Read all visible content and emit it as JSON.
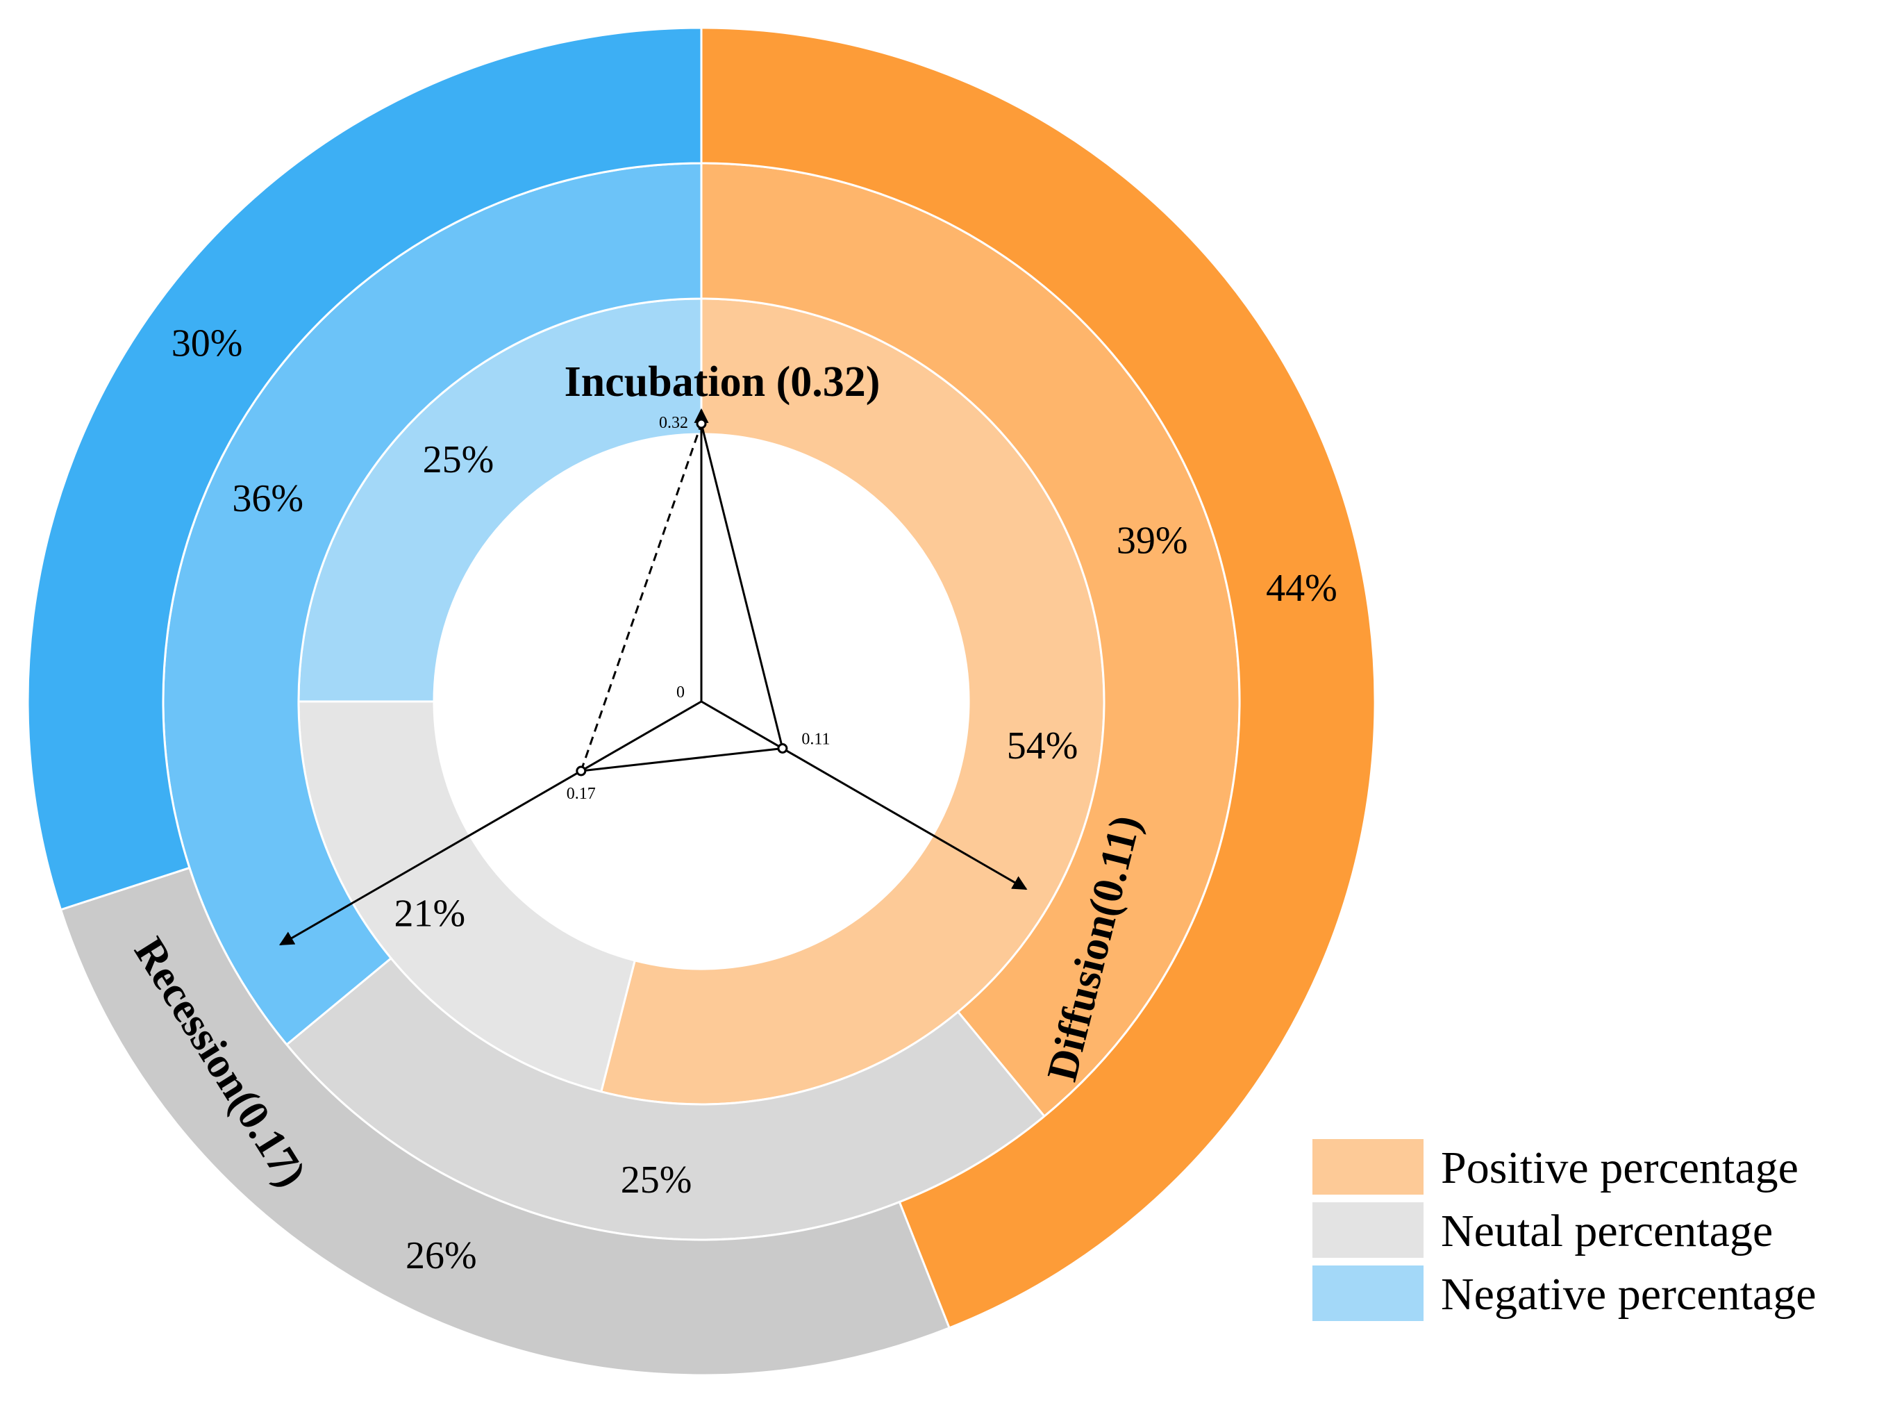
{
  "chart_data": {
    "type": "nested-donut-radar",
    "rings": [
      {
        "name": "inner",
        "positive": 54,
        "neutral": 21,
        "negative": 25
      },
      {
        "name": "middle",
        "positive": 39,
        "neutral": 25,
        "negative": 36
      },
      {
        "name": "outer",
        "positive": 44,
        "neutral": 26,
        "negative": 30
      }
    ],
    "radar": {
      "axes": [
        {
          "name": "Incubation",
          "label": "Incubation (0.32)",
          "value": 0.32,
          "tick": "0.32"
        },
        {
          "name": "Diffusion",
          "label": "Diffusion(0.11)",
          "value": 0.11,
          "tick": "0.11"
        },
        {
          "name": "Recession",
          "label": "Recession(0.17)",
          "value": 0.17,
          "tick": "0.17"
        }
      ],
      "origin_label": "0"
    },
    "legend": [
      {
        "label": "Positive percentage",
        "color": "#FDCA97"
      },
      {
        "label": "Neutal percentage",
        "color": "#E3E3E3"
      },
      {
        "label": "Negative percentage",
        "color": "#A3D8F8"
      }
    ],
    "colors": {
      "positive": [
        "#FDCA97",
        "#FEB56B",
        "#FD9C38"
      ],
      "neutral": [
        "#E5E5E5",
        "#D8D8D8",
        "#CACACA"
      ],
      "negative": [
        "#A3D8F8",
        "#6CC3F8",
        "#3DAFF4"
      ]
    }
  }
}
